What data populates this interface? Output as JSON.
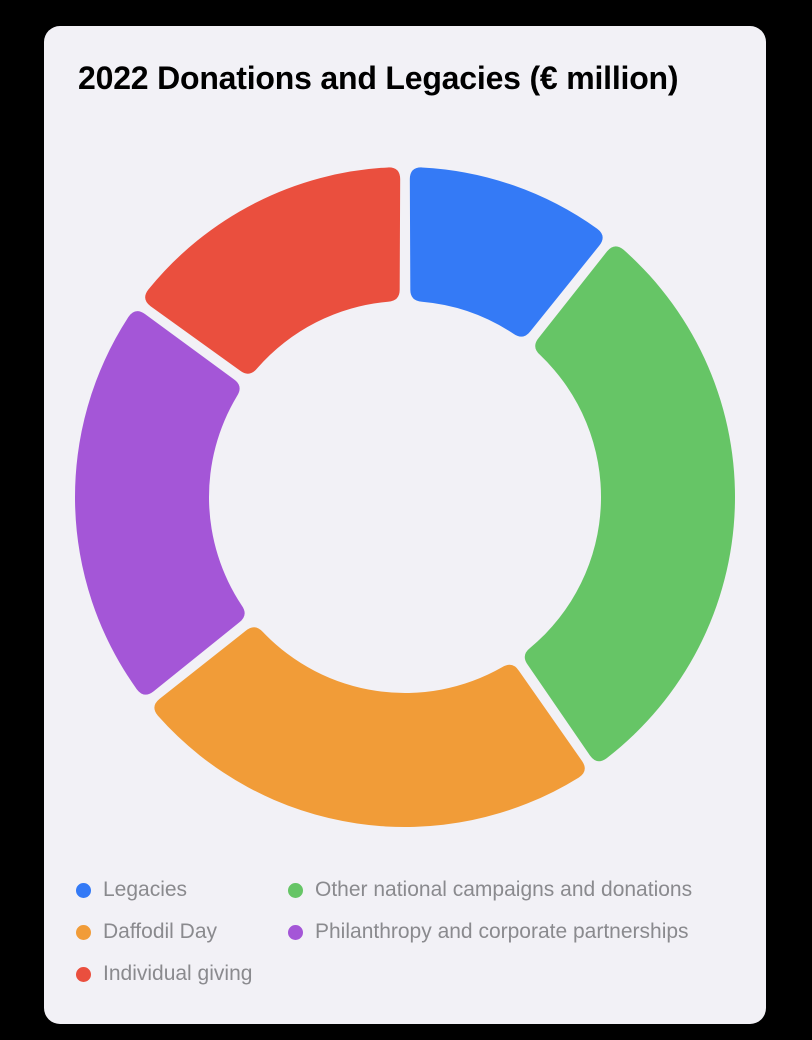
{
  "chart_data": {
    "type": "pie",
    "title": "2022 Donations and Legacies (€ million)",
    "series": [
      {
        "name": "Legacies",
        "value": 3.0,
        "color": "#347af6"
      },
      {
        "name": "Other national campaigns and donations",
        "value": 8.3,
        "color": "#66c566"
      },
      {
        "name": "Daffodil Day",
        "value": 6.7,
        "color": "#f19c38"
      },
      {
        "name": "Philanthropy and corporate partnerships",
        "value": 5.8,
        "color": "#a456d7"
      },
      {
        "name": "Individual giving",
        "value": 4.2,
        "color": "#ea4f3e"
      }
    ],
    "legend_order": [
      0,
      1,
      2,
      3,
      4
    ],
    "legend_position": "bottom"
  }
}
